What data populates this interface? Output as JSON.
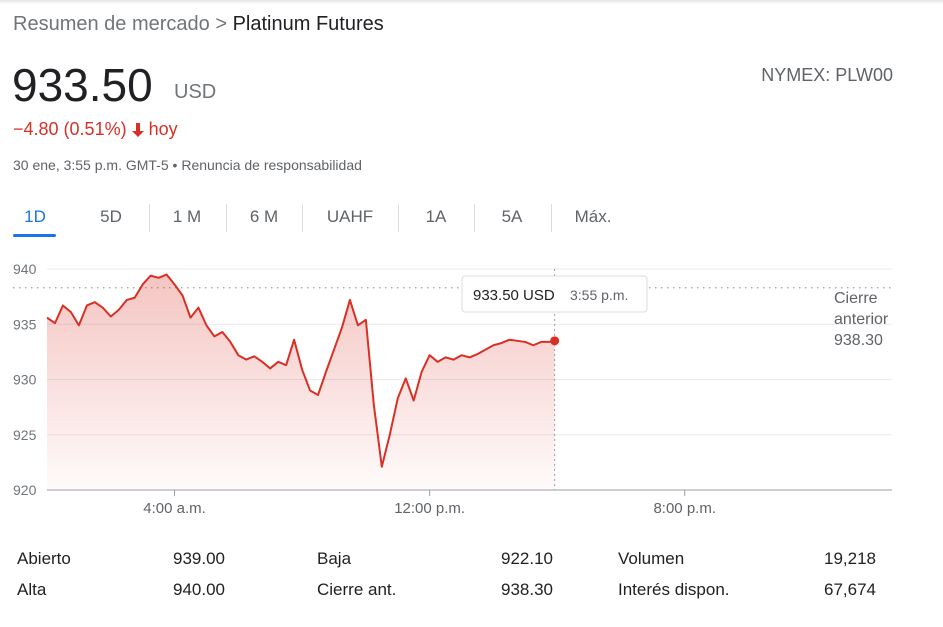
{
  "breadcrumb": {
    "parent": "Resumen de mercado",
    "separator": ">",
    "current": "Platinum Futures"
  },
  "quote": {
    "price": "933.50",
    "currency": "USD",
    "exchange": "NYMEX: PLW00",
    "change": "−4.80 (0.51%)",
    "period": "hoy",
    "timestamp": "30 ene, 3:55 p.m. GMT-5",
    "separator": "•",
    "disclaimer": "Renuncia de responsabilidad"
  },
  "tabs": [
    "1D",
    "5D",
    "1 M",
    "6 M",
    "UAHF",
    "1A",
    "5A",
    "Máx."
  ],
  "selected_tab": 0,
  "chart_data": {
    "type": "line",
    "color": "#d93025",
    "grid": true,
    "x": [
      0,
      0.25,
      0.5,
      0.75,
      1,
      1.25,
      1.5,
      1.75,
      2,
      2.25,
      2.5,
      2.75,
      3,
      3.25,
      3.5,
      3.75,
      4,
      4.25,
      4.5,
      4.75,
      5,
      5.25,
      5.5,
      5.75,
      6,
      6.25,
      6.5,
      6.75,
      7,
      7.25,
      7.5,
      7.75,
      8,
      8.25,
      8.5,
      8.75,
      9,
      9.25,
      9.5,
      9.75,
      10,
      10.25,
      10.5,
      10.75,
      11,
      11.25,
      11.5,
      11.75,
      12,
      12.25,
      12.5,
      12.75,
      13,
      13.25,
      13.5,
      13.75,
      14,
      14.25,
      14.5,
      14.75,
      15,
      15.25,
      15.5,
      15.75,
      15.92
    ],
    "values": [
      935.6,
      935.1,
      936.7,
      936.1,
      934.9,
      936.7,
      937.0,
      936.5,
      935.7,
      936.3,
      937.2,
      937.4,
      938.6,
      939.4,
      939.2,
      939.5,
      938.6,
      937.6,
      935.6,
      936.5,
      934.9,
      933.9,
      934.3,
      933.4,
      932.2,
      931.8,
      932.1,
      931.6,
      931.0,
      931.6,
      931.3,
      933.6,
      930.9,
      929.0,
      928.6,
      930.7,
      932.7,
      934.7,
      937.2,
      934.9,
      935.4,
      927.7,
      922.1,
      925.0,
      928.3,
      930.1,
      928.1,
      930.7,
      932.2,
      931.6,
      932.0,
      931.8,
      932.2,
      932.0,
      932.3,
      932.7,
      933.1,
      933.3,
      933.6,
      933.5,
      933.4,
      933.1,
      933.4,
      933.4,
      933.5
    ],
    "xlim": [
      0,
      26.5
    ],
    "xticks": [
      {
        "value": 4,
        "label": "4:00 a.m."
      },
      {
        "value": 12,
        "label": "12:00 p.m."
      },
      {
        "value": 20,
        "label": "8:00 p.m."
      }
    ],
    "ylim": [
      920,
      940
    ],
    "yticks": [
      920,
      925,
      930,
      935,
      940
    ],
    "reference_line": {
      "label": "Cierre anterior",
      "value": 938.3,
      "value_label": "938.30"
    },
    "tooltip": {
      "price": "933.50 USD",
      "time": "3:55 p.m."
    }
  },
  "stats": {
    "rows": [
      [
        "Abierto",
        "939.00",
        "Baja",
        "922.10",
        "Volumen",
        "19,218"
      ],
      [
        "Alta",
        "940.00",
        "Cierre ant.",
        "938.30",
        "Interés dispon.",
        "67,674"
      ]
    ]
  }
}
